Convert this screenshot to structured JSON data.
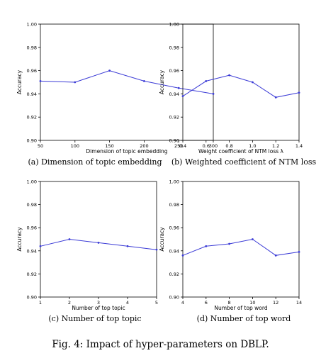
{
  "figure_caption": "Fig. 4: Impact of hyper-parameters on DBLP.",
  "colors": {
    "line": "#3b3bd6",
    "axis": "#000000"
  },
  "chart_data": [
    {
      "type": "line",
      "caption": "(a) Dimension of topic embedding",
      "xlabel": "Dimension of topic embedding",
      "ylabel": "Accuracy",
      "x": [
        50,
        100,
        150,
        200,
        250,
        300
      ],
      "values": [
        0.951,
        0.95,
        0.96,
        0.951,
        0.945,
        0.94
      ],
      "xlim": [
        50,
        300
      ],
      "ylim": [
        0.9,
        1.0
      ],
      "xticks": [
        50,
        100,
        150,
        200,
        250,
        300
      ],
      "xtick_labels": [
        "50",
        "100",
        "150",
        "200",
        "250",
        "300"
      ],
      "yticks": [
        0.9,
        0.92,
        0.94,
        0.96,
        0.98,
        1.0
      ],
      "ytick_labels": [
        "0.90",
        "0.92",
        "0.94",
        "0.96",
        "0.98",
        "1.00"
      ]
    },
    {
      "type": "line",
      "caption": "(b) Weighted coefficient of NTM loss",
      "xlabel": "Weight coefficient of NTM loss λ",
      "ylabel": "Accuracy",
      "x": [
        0.4,
        0.6,
        0.8,
        1.0,
        1.2,
        1.4
      ],
      "values": [
        0.938,
        0.951,
        0.956,
        0.95,
        0.937,
        0.941
      ],
      "xlim": [
        0.4,
        1.4
      ],
      "ylim": [
        0.9,
        1.0
      ],
      "xticks": [
        0.4,
        0.6,
        0.8,
        1.0,
        1.2,
        1.4
      ],
      "xtick_labels": [
        "0.4",
        "0.6",
        "0.8",
        "1.0",
        "1.2",
        "1.4"
      ],
      "yticks": [
        0.9,
        0.92,
        0.94,
        0.96,
        0.98,
        1.0
      ],
      "ytick_labels": [
        "0.90",
        "0.92",
        "0.94",
        "0.96",
        "0.98",
        "1.00"
      ]
    },
    {
      "type": "line",
      "caption": "(c) Number of top topic",
      "xlabel": "Number of top topic",
      "ylabel": "Accuracy",
      "x": [
        1,
        2,
        3,
        4,
        5
      ],
      "values": [
        0.944,
        0.95,
        0.947,
        0.944,
        0.941
      ],
      "xlim": [
        1,
        5
      ],
      "ylim": [
        0.9,
        1.0
      ],
      "xticks": [
        1,
        2,
        3,
        4,
        5
      ],
      "xtick_labels": [
        "1",
        "2",
        "3",
        "4",
        "5"
      ],
      "yticks": [
        0.9,
        0.92,
        0.94,
        0.96,
        0.98,
        1.0
      ],
      "ytick_labels": [
        "0.90",
        "0.92",
        "0.94",
        "0.96",
        "0.98",
        "1.00"
      ]
    },
    {
      "type": "line",
      "caption": "(d) Number of top word",
      "xlabel": "Number of top word",
      "ylabel": "Accuracy",
      "x": [
        4,
        6,
        8,
        10,
        12,
        14
      ],
      "values": [
        0.936,
        0.944,
        0.946,
        0.95,
        0.936,
        0.939
      ],
      "xlim": [
        4,
        14
      ],
      "ylim": [
        0.9,
        1.0
      ],
      "xticks": [
        4,
        6,
        8,
        10,
        12,
        14
      ],
      "xtick_labels": [
        "4",
        "6",
        "8",
        "10",
        "12",
        "14"
      ],
      "yticks": [
        0.9,
        0.92,
        0.94,
        0.96,
        0.98,
        1.0
      ],
      "ytick_labels": [
        "0.90",
        "0.92",
        "0.94",
        "0.96",
        "0.98",
        "1.00"
      ]
    }
  ]
}
